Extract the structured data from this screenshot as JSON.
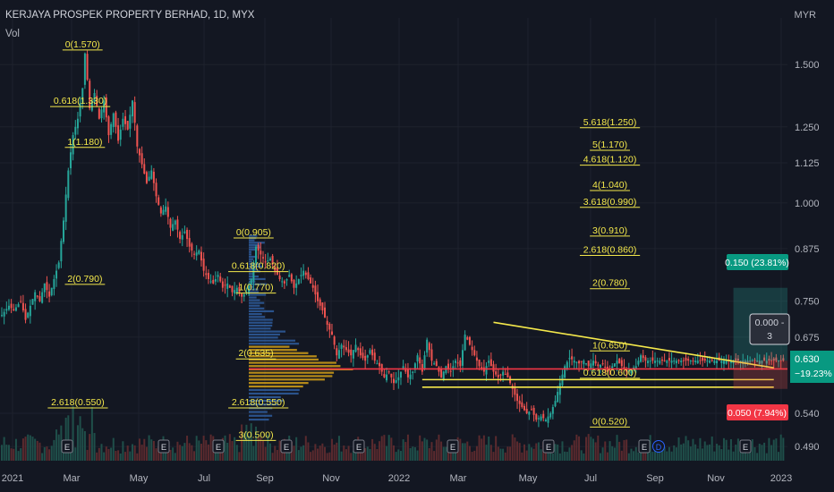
{
  "header": {
    "title": "KERJAYA PROSPEK PROPERTY BERHAD, 1D, MYX",
    "indicator": "Vol",
    "currency": "MYR"
  },
  "colors": {
    "bg": "#131722",
    "up": "#26a69a",
    "down": "#ef5350",
    "fib": "#f5e94b",
    "red_line": "#f23645",
    "grid": "#1e222d",
    "axis_text": "#b2b5be"
  },
  "chart_data": {
    "type": "candlestick",
    "y_scale": "log",
    "ylim": [
      0.47,
      1.72
    ],
    "y_ticks": [
      "1.500",
      "1.250",
      "1.125",
      "1.000",
      "0.875",
      "0.750",
      "0.675",
      "0.540",
      "0.490"
    ],
    "x_ticks": [
      "2021",
      "Mar",
      "May",
      "Jul",
      "Sep",
      "Nov",
      "2022",
      "Mar",
      "May",
      "Jul",
      "Sep",
      "Nov",
      "2023"
    ],
    "ohlc_path": [
      [
        0,
        0.72
      ],
      [
        3,
        0.74
      ],
      [
        5,
        0.73
      ],
      [
        8,
        0.75
      ],
      [
        10,
        0.71
      ],
      [
        12,
        0.74
      ],
      [
        14,
        0.77
      ],
      [
        16,
        0.75
      ],
      [
        18,
        0.79
      ],
      [
        20,
        0.76
      ],
      [
        22,
        0.8
      ],
      [
        24,
        0.84
      ],
      [
        26,
        0.95
      ],
      [
        28,
        1.1
      ],
      [
        30,
        1.22
      ],
      [
        32,
        1.28
      ],
      [
        34,
        1.4
      ],
      [
        35,
        1.55
      ],
      [
        37,
        1.32
      ],
      [
        39,
        1.38
      ],
      [
        41,
        1.28
      ],
      [
        43,
        1.35
      ],
      [
        45,
        1.22
      ],
      [
        47,
        1.3
      ],
      [
        49,
        1.2
      ],
      [
        51,
        1.28
      ],
      [
        53,
        1.24
      ],
      [
        55,
        1.35
      ],
      [
        57,
        1.18
      ],
      [
        59,
        1.12
      ],
      [
        61,
        1.06
      ],
      [
        63,
        1.1
      ],
      [
        65,
        1.02
      ],
      [
        67,
        0.97
      ],
      [
        69,
        0.99
      ],
      [
        71,
        0.93
      ],
      [
        73,
        0.95
      ],
      [
        75,
        0.9
      ],
      [
        77,
        0.92
      ],
      [
        79,
        0.88
      ],
      [
        81,
        0.86
      ],
      [
        83,
        0.87
      ],
      [
        85,
        0.82
      ],
      [
        87,
        0.8
      ],
      [
        89,
        0.79
      ],
      [
        91,
        0.81
      ],
      [
        93,
        0.78
      ],
      [
        95,
        0.79
      ],
      [
        97,
        0.77
      ],
      [
        99,
        0.78
      ],
      [
        101,
        0.76
      ],
      [
        103,
        0.77
      ],
      [
        105,
        0.8
      ],
      [
        107,
        0.88
      ],
      [
        109,
        0.86
      ],
      [
        111,
        0.84
      ],
      [
        113,
        0.85
      ],
      [
        115,
        0.82
      ],
      [
        117,
        0.8
      ],
      [
        119,
        0.79
      ],
      [
        121,
        0.81
      ],
      [
        123,
        0.78
      ],
      [
        125,
        0.8
      ],
      [
        127,
        0.82
      ],
      [
        129,
        0.8
      ],
      [
        131,
        0.78
      ],
      [
        133,
        0.75
      ],
      [
        135,
        0.73
      ],
      [
        137,
        0.7
      ],
      [
        139,
        0.68
      ],
      [
        141,
        0.64
      ],
      [
        143,
        0.66
      ],
      [
        145,
        0.65
      ],
      [
        147,
        0.64
      ],
      [
        149,
        0.66
      ],
      [
        151,
        0.64
      ],
      [
        153,
        0.63
      ],
      [
        155,
        0.65
      ],
      [
        157,
        0.63
      ],
      [
        159,
        0.62
      ],
      [
        161,
        0.6
      ],
      [
        163,
        0.61
      ],
      [
        165,
        0.59
      ],
      [
        167,
        0.6
      ],
      [
        169,
        0.62
      ],
      [
        171,
        0.6
      ],
      [
        173,
        0.61
      ],
      [
        175,
        0.64
      ],
      [
        177,
        0.61
      ],
      [
        179,
        0.67
      ],
      [
        181,
        0.63
      ],
      [
        183,
        0.62
      ],
      [
        185,
        0.6
      ],
      [
        187,
        0.62
      ],
      [
        189,
        0.61
      ],
      [
        191,
        0.63
      ],
      [
        193,
        0.62
      ],
      [
        195,
        0.68
      ],
      [
        197,
        0.66
      ],
      [
        199,
        0.64
      ],
      [
        201,
        0.62
      ],
      [
        203,
        0.61
      ],
      [
        205,
        0.63
      ],
      [
        207,
        0.61
      ],
      [
        209,
        0.6
      ],
      [
        211,
        0.61
      ],
      [
        213,
        0.6
      ],
      [
        215,
        0.58
      ],
      [
        217,
        0.56
      ],
      [
        219,
        0.55
      ],
      [
        221,
        0.54
      ],
      [
        223,
        0.545
      ],
      [
        225,
        0.53
      ],
      [
        227,
        0.535
      ],
      [
        229,
        0.53
      ],
      [
        231,
        0.54
      ],
      [
        233,
        0.56
      ],
      [
        235,
        0.59
      ],
      [
        237,
        0.62
      ],
      [
        239,
        0.635
      ],
      [
        241,
        0.63
      ],
      [
        243,
        0.625
      ],
      [
        245,
        0.63
      ],
      [
        247,
        0.62
      ],
      [
        249,
        0.63
      ],
      [
        251,
        0.62
      ],
      [
        253,
        0.625
      ],
      [
        255,
        0.61
      ],
      [
        257,
        0.62
      ],
      [
        259,
        0.63
      ],
      [
        261,
        0.62
      ],
      [
        263,
        0.61
      ],
      [
        265,
        0.615
      ],
      [
        267,
        0.62
      ],
      [
        269,
        0.64
      ],
      [
        271,
        0.63
      ],
      [
        273,
        0.63
      ]
    ],
    "fib_labels": [
      {
        "text": "0(1.570)",
        "price": 1.57,
        "bar": 34
      },
      {
        "text": "0.618(1.330)",
        "price": 1.33,
        "bar": 33
      },
      {
        "text": "1(1.180)",
        "price": 1.18,
        "bar": 35
      },
      {
        "text": "2(0.790)",
        "price": 0.79,
        "bar": 35
      },
      {
        "text": "2.618(0.550)",
        "price": 0.55,
        "bar": 32
      },
      {
        "text": "0(0.905)",
        "price": 0.905,
        "bar": 106
      },
      {
        "text": "0.618(0.820)",
        "price": 0.82,
        "bar": 108
      },
      {
        "text": "1(0.770)",
        "price": 0.77,
        "bar": 107
      },
      {
        "text": "2(0.635)",
        "price": 0.635,
        "bar": 107
      },
      {
        "text": "2.618(0.550)",
        "price": 0.55,
        "bar": 108
      },
      {
        "text": "3(0.500)",
        "price": 0.5,
        "bar": 107
      },
      {
        "text": "5.618(1.250)",
        "price": 1.25,
        "bar": 256
      },
      {
        "text": "5(1.170)",
        "price": 1.17,
        "bar": 256
      },
      {
        "text": "4.618(1.120)",
        "price": 1.12,
        "bar": 256
      },
      {
        "text": "4(1.040)",
        "price": 1.04,
        "bar": 256
      },
      {
        "text": "3.618(0.990)",
        "price": 0.99,
        "bar": 256
      },
      {
        "text": "3(0.910)",
        "price": 0.91,
        "bar": 256
      },
      {
        "text": "2.618(0.860)",
        "price": 0.86,
        "bar": 256
      },
      {
        "text": "2(0.780)",
        "price": 0.78,
        "bar": 256
      },
      {
        "text": "1(0.650)",
        "price": 0.65,
        "bar": 256
      },
      {
        "text": "0.618(0.600)",
        "price": 0.6,
        "bar": 256
      },
      {
        "text": "0(0.520)",
        "price": 0.52,
        "bar": 256
      }
    ],
    "red_line_price": 0.615,
    "trendline": [
      [
        207,
        0.705
      ],
      [
        325,
        0.617
      ]
    ],
    "channel_top": [
      [
        177,
        0.596
      ],
      [
        325,
        0.596
      ]
    ],
    "channel_bottom": [
      [
        177,
        0.583
      ],
      [
        325,
        0.583
      ]
    ],
    "last_price": "0.630",
    "last_change": "−19.23%",
    "target_label": "0.150 (23.81%)",
    "stop_label": "0.050 (7.94%)",
    "box_label_top": "0.000 -",
    "box_label_bottom": "3",
    "event_marker": "E",
    "dividend_marker": "D"
  }
}
